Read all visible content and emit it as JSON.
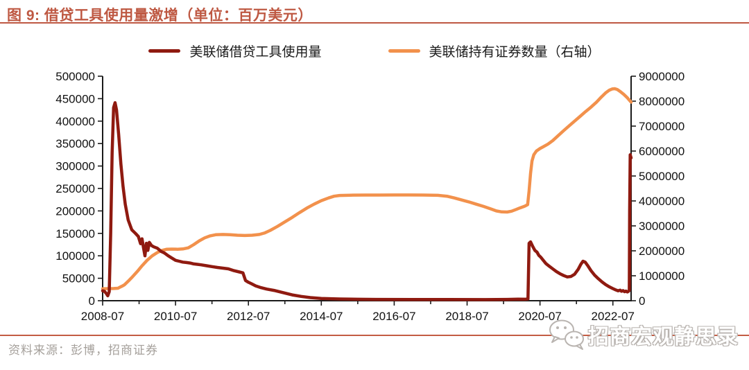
{
  "header": {
    "title": "图 9: 借贷工具使用量激增（单位：百万美元）"
  },
  "legend": [
    {
      "label": "美联储借贷工具使用量",
      "color": "#8F1A10"
    },
    {
      "label": "美联储持有证券数量（右轴）",
      "color": "#F2914C"
    }
  ],
  "footer": {
    "source": "资料来源：彭博，招商证券",
    "watermark": "招商宏观静思录"
  },
  "colors": {
    "accent": "#BE5842",
    "rule": "#C35C43",
    "series_red": "#8F1A10",
    "series_orange": "#F2914C",
    "axis": "#1a1a1a",
    "watermark_gray": "#b9b4b0",
    "source_gray": "#A5A09B"
  },
  "chart_data": {
    "type": "line",
    "title": "借贷工具使用量激增（单位：百万美元）",
    "grid": false,
    "legend_position": "top",
    "x_domain": [
      2008.5,
      2023.0
    ],
    "x_tick_years": [
      2008.5,
      2010.5,
      2012.5,
      2014.5,
      2016.5,
      2018.5,
      2020.5,
      2022.5
    ],
    "x_tick_labels": [
      "2008-07",
      "2010-07",
      "2012-07",
      "2014-07",
      "2016-07",
      "2018-07",
      "2020-07",
      "2022-07"
    ],
    "x_minor_tick_years": [
      2009.5,
      2011.5,
      2013.5,
      2015.5,
      2017.5,
      2019.5,
      2021.5
    ],
    "left_axis": {
      "min": 0,
      "max": 500000,
      "step": 50000
    },
    "right_axis": {
      "min": 0,
      "max": 9000000,
      "step": 1000000
    },
    "series": [
      {
        "name": "美联储持有证券数量（右轴）",
        "axis": "right",
        "color": "#F2914C",
        "points": [
          [
            2008.5,
            480000
          ],
          [
            2008.65,
            485000
          ],
          [
            2008.8,
            490000
          ],
          [
            2008.92,
            500000
          ],
          [
            2009.0,
            560000
          ],
          [
            2009.04,
            590000
          ],
          [
            2009.1,
            640000
          ],
          [
            2009.2,
            780000
          ],
          [
            2009.32,
            960000
          ],
          [
            2009.45,
            1170000
          ],
          [
            2009.58,
            1400000
          ],
          [
            2009.72,
            1620000
          ],
          [
            2009.86,
            1800000
          ],
          [
            2010.0,
            1930000
          ],
          [
            2010.12,
            2010000
          ],
          [
            2010.25,
            2060000
          ],
          [
            2010.4,
            2070000
          ],
          [
            2010.55,
            2065000
          ],
          [
            2010.7,
            2075000
          ],
          [
            2010.85,
            2120000
          ],
          [
            2011.0,
            2250000
          ],
          [
            2011.15,
            2400000
          ],
          [
            2011.3,
            2520000
          ],
          [
            2011.45,
            2600000
          ],
          [
            2011.6,
            2645000
          ],
          [
            2011.8,
            2655000
          ],
          [
            2012.0,
            2645000
          ],
          [
            2012.2,
            2625000
          ],
          [
            2012.4,
            2615000
          ],
          [
            2012.6,
            2625000
          ],
          [
            2012.8,
            2655000
          ],
          [
            2012.95,
            2720000
          ],
          [
            2013.1,
            2820000
          ],
          [
            2013.3,
            2980000
          ],
          [
            2013.5,
            3160000
          ],
          [
            2013.7,
            3340000
          ],
          [
            2013.9,
            3530000
          ],
          [
            2014.1,
            3710000
          ],
          [
            2014.3,
            3870000
          ],
          [
            2014.5,
            4010000
          ],
          [
            2014.7,
            4120000
          ],
          [
            2014.85,
            4190000
          ],
          [
            2015.0,
            4220000
          ],
          [
            2015.3,
            4230000
          ],
          [
            2015.7,
            4235000
          ],
          [
            2016.1,
            4235000
          ],
          [
            2016.5,
            4240000
          ],
          [
            2016.9,
            4240000
          ],
          [
            2017.3,
            4235000
          ],
          [
            2017.7,
            4225000
          ],
          [
            2017.95,
            4190000
          ],
          [
            2018.15,
            4120000
          ],
          [
            2018.35,
            4040000
          ],
          [
            2018.55,
            3960000
          ],
          [
            2018.75,
            3870000
          ],
          [
            2018.95,
            3780000
          ],
          [
            2019.15,
            3680000
          ],
          [
            2019.3,
            3600000
          ],
          [
            2019.45,
            3560000
          ],
          [
            2019.6,
            3555000
          ],
          [
            2019.72,
            3590000
          ],
          [
            2019.85,
            3660000
          ],
          [
            2019.95,
            3720000
          ],
          [
            2020.08,
            3790000
          ],
          [
            2020.16,
            3850000
          ],
          [
            2020.2,
            4400000
          ],
          [
            2020.24,
            5100000
          ],
          [
            2020.28,
            5600000
          ],
          [
            2020.33,
            5850000
          ],
          [
            2020.4,
            6000000
          ],
          [
            2020.5,
            6100000
          ],
          [
            2020.6,
            6180000
          ],
          [
            2020.72,
            6280000
          ],
          [
            2020.85,
            6420000
          ],
          [
            2021.0,
            6620000
          ],
          [
            2021.15,
            6820000
          ],
          [
            2021.3,
            7010000
          ],
          [
            2021.45,
            7200000
          ],
          [
            2021.6,
            7390000
          ],
          [
            2021.75,
            7580000
          ],
          [
            2021.9,
            7760000
          ],
          [
            2022.05,
            7960000
          ],
          [
            2022.18,
            8160000
          ],
          [
            2022.3,
            8330000
          ],
          [
            2022.4,
            8440000
          ],
          [
            2022.48,
            8490000
          ],
          [
            2022.55,
            8500000
          ],
          [
            2022.62,
            8470000
          ],
          [
            2022.7,
            8390000
          ],
          [
            2022.8,
            8270000
          ],
          [
            2022.9,
            8130000
          ],
          [
            2023.0,
            7960000
          ]
        ]
      },
      {
        "name": "美联储借贷工具使用量",
        "axis": "left",
        "color": "#8F1A10",
        "points": [
          [
            2008.5,
            22000
          ],
          [
            2008.55,
            21000
          ],
          [
            2008.6,
            16000
          ],
          [
            2008.64,
            11000
          ],
          [
            2008.68,
            20000
          ],
          [
            2008.72,
            150000
          ],
          [
            2008.76,
            330000
          ],
          [
            2008.8,
            430000
          ],
          [
            2008.84,
            441000
          ],
          [
            2008.88,
            425000
          ],
          [
            2008.94,
            370000
          ],
          [
            2009.0,
            305000
          ],
          [
            2009.06,
            255000
          ],
          [
            2009.12,
            215000
          ],
          [
            2009.2,
            180000
          ],
          [
            2009.3,
            158000
          ],
          [
            2009.4,
            150000
          ],
          [
            2009.48,
            143000
          ],
          [
            2009.54,
            127000
          ],
          [
            2009.58,
            138000
          ],
          [
            2009.62,
            118000
          ],
          [
            2009.66,
            100000
          ],
          [
            2009.7,
            128000
          ],
          [
            2009.74,
            112000
          ],
          [
            2009.78,
            130000
          ],
          [
            2009.84,
            123000
          ],
          [
            2009.9,
            120000
          ],
          [
            2010.0,
            117000
          ],
          [
            2010.1,
            110000
          ],
          [
            2010.2,
            106000
          ],
          [
            2010.3,
            100000
          ],
          [
            2010.4,
            95000
          ],
          [
            2010.5,
            90000
          ],
          [
            2010.6,
            88000
          ],
          [
            2010.7,
            86000
          ],
          [
            2010.8,
            85000
          ],
          [
            2010.9,
            84000
          ],
          [
            2011.0,
            82000
          ],
          [
            2011.1,
            81000
          ],
          [
            2011.2,
            80000
          ],
          [
            2011.35,
            78000
          ],
          [
            2011.5,
            76000
          ],
          [
            2011.65,
            74000
          ],
          [
            2011.8,
            72500
          ],
          [
            2011.95,
            71000
          ],
          [
            2012.1,
            67000
          ],
          [
            2012.25,
            64000
          ],
          [
            2012.35,
            62000
          ],
          [
            2012.42,
            45000
          ],
          [
            2012.5,
            41000
          ],
          [
            2012.58,
            38000
          ],
          [
            2012.7,
            33000
          ],
          [
            2012.85,
            29000
          ],
          [
            2013.0,
            26000
          ],
          [
            2013.2,
            23000
          ],
          [
            2013.45,
            18000
          ],
          [
            2013.7,
            13000
          ],
          [
            2013.95,
            9500
          ],
          [
            2014.2,
            7000
          ],
          [
            2014.5,
            5000
          ],
          [
            2015.0,
            3800
          ],
          [
            2015.5,
            3200
          ],
          [
            2016.0,
            3000
          ],
          [
            2017.0,
            2800
          ],
          [
            2018.0,
            2600
          ],
          [
            2019.0,
            2500
          ],
          [
            2019.6,
            3000
          ],
          [
            2019.9,
            3500
          ],
          [
            2020.1,
            3200
          ],
          [
            2020.17,
            4000
          ],
          [
            2020.2,
            128000
          ],
          [
            2020.24,
            131000
          ],
          [
            2020.3,
            121000
          ],
          [
            2020.36,
            112000
          ],
          [
            2020.42,
            108000
          ],
          [
            2020.47,
            101000
          ],
          [
            2020.52,
            97000
          ],
          [
            2020.58,
            91000
          ],
          [
            2020.66,
            83000
          ],
          [
            2020.75,
            77000
          ],
          [
            2020.85,
            71000
          ],
          [
            2020.95,
            65000
          ],
          [
            2021.05,
            60000
          ],
          [
            2021.15,
            56000
          ],
          [
            2021.25,
            53000
          ],
          [
            2021.35,
            54000
          ],
          [
            2021.45,
            59000
          ],
          [
            2021.55,
            70000
          ],
          [
            2021.62,
            81000
          ],
          [
            2021.68,
            88000
          ],
          [
            2021.74,
            86000
          ],
          [
            2021.82,
            77000
          ],
          [
            2021.9,
            67000
          ],
          [
            2022.0,
            57000
          ],
          [
            2022.1,
            49000
          ],
          [
            2022.2,
            42000
          ],
          [
            2022.3,
            36000
          ],
          [
            2022.4,
            31000
          ],
          [
            2022.5,
            27000
          ],
          [
            2022.58,
            24000
          ],
          [
            2022.64,
            22000
          ],
          [
            2022.7,
            23500
          ],
          [
            2022.74,
            21000
          ],
          [
            2022.78,
            22500
          ],
          [
            2022.82,
            20000
          ],
          [
            2022.86,
            21500
          ],
          [
            2022.9,
            19500
          ],
          [
            2022.93,
            21000
          ],
          [
            2022.95,
            23000
          ],
          [
            2022.96,
            200000
          ],
          [
            2022.975,
            325000
          ],
          [
            2023.0,
            318000
          ]
        ]
      }
    ]
  }
}
